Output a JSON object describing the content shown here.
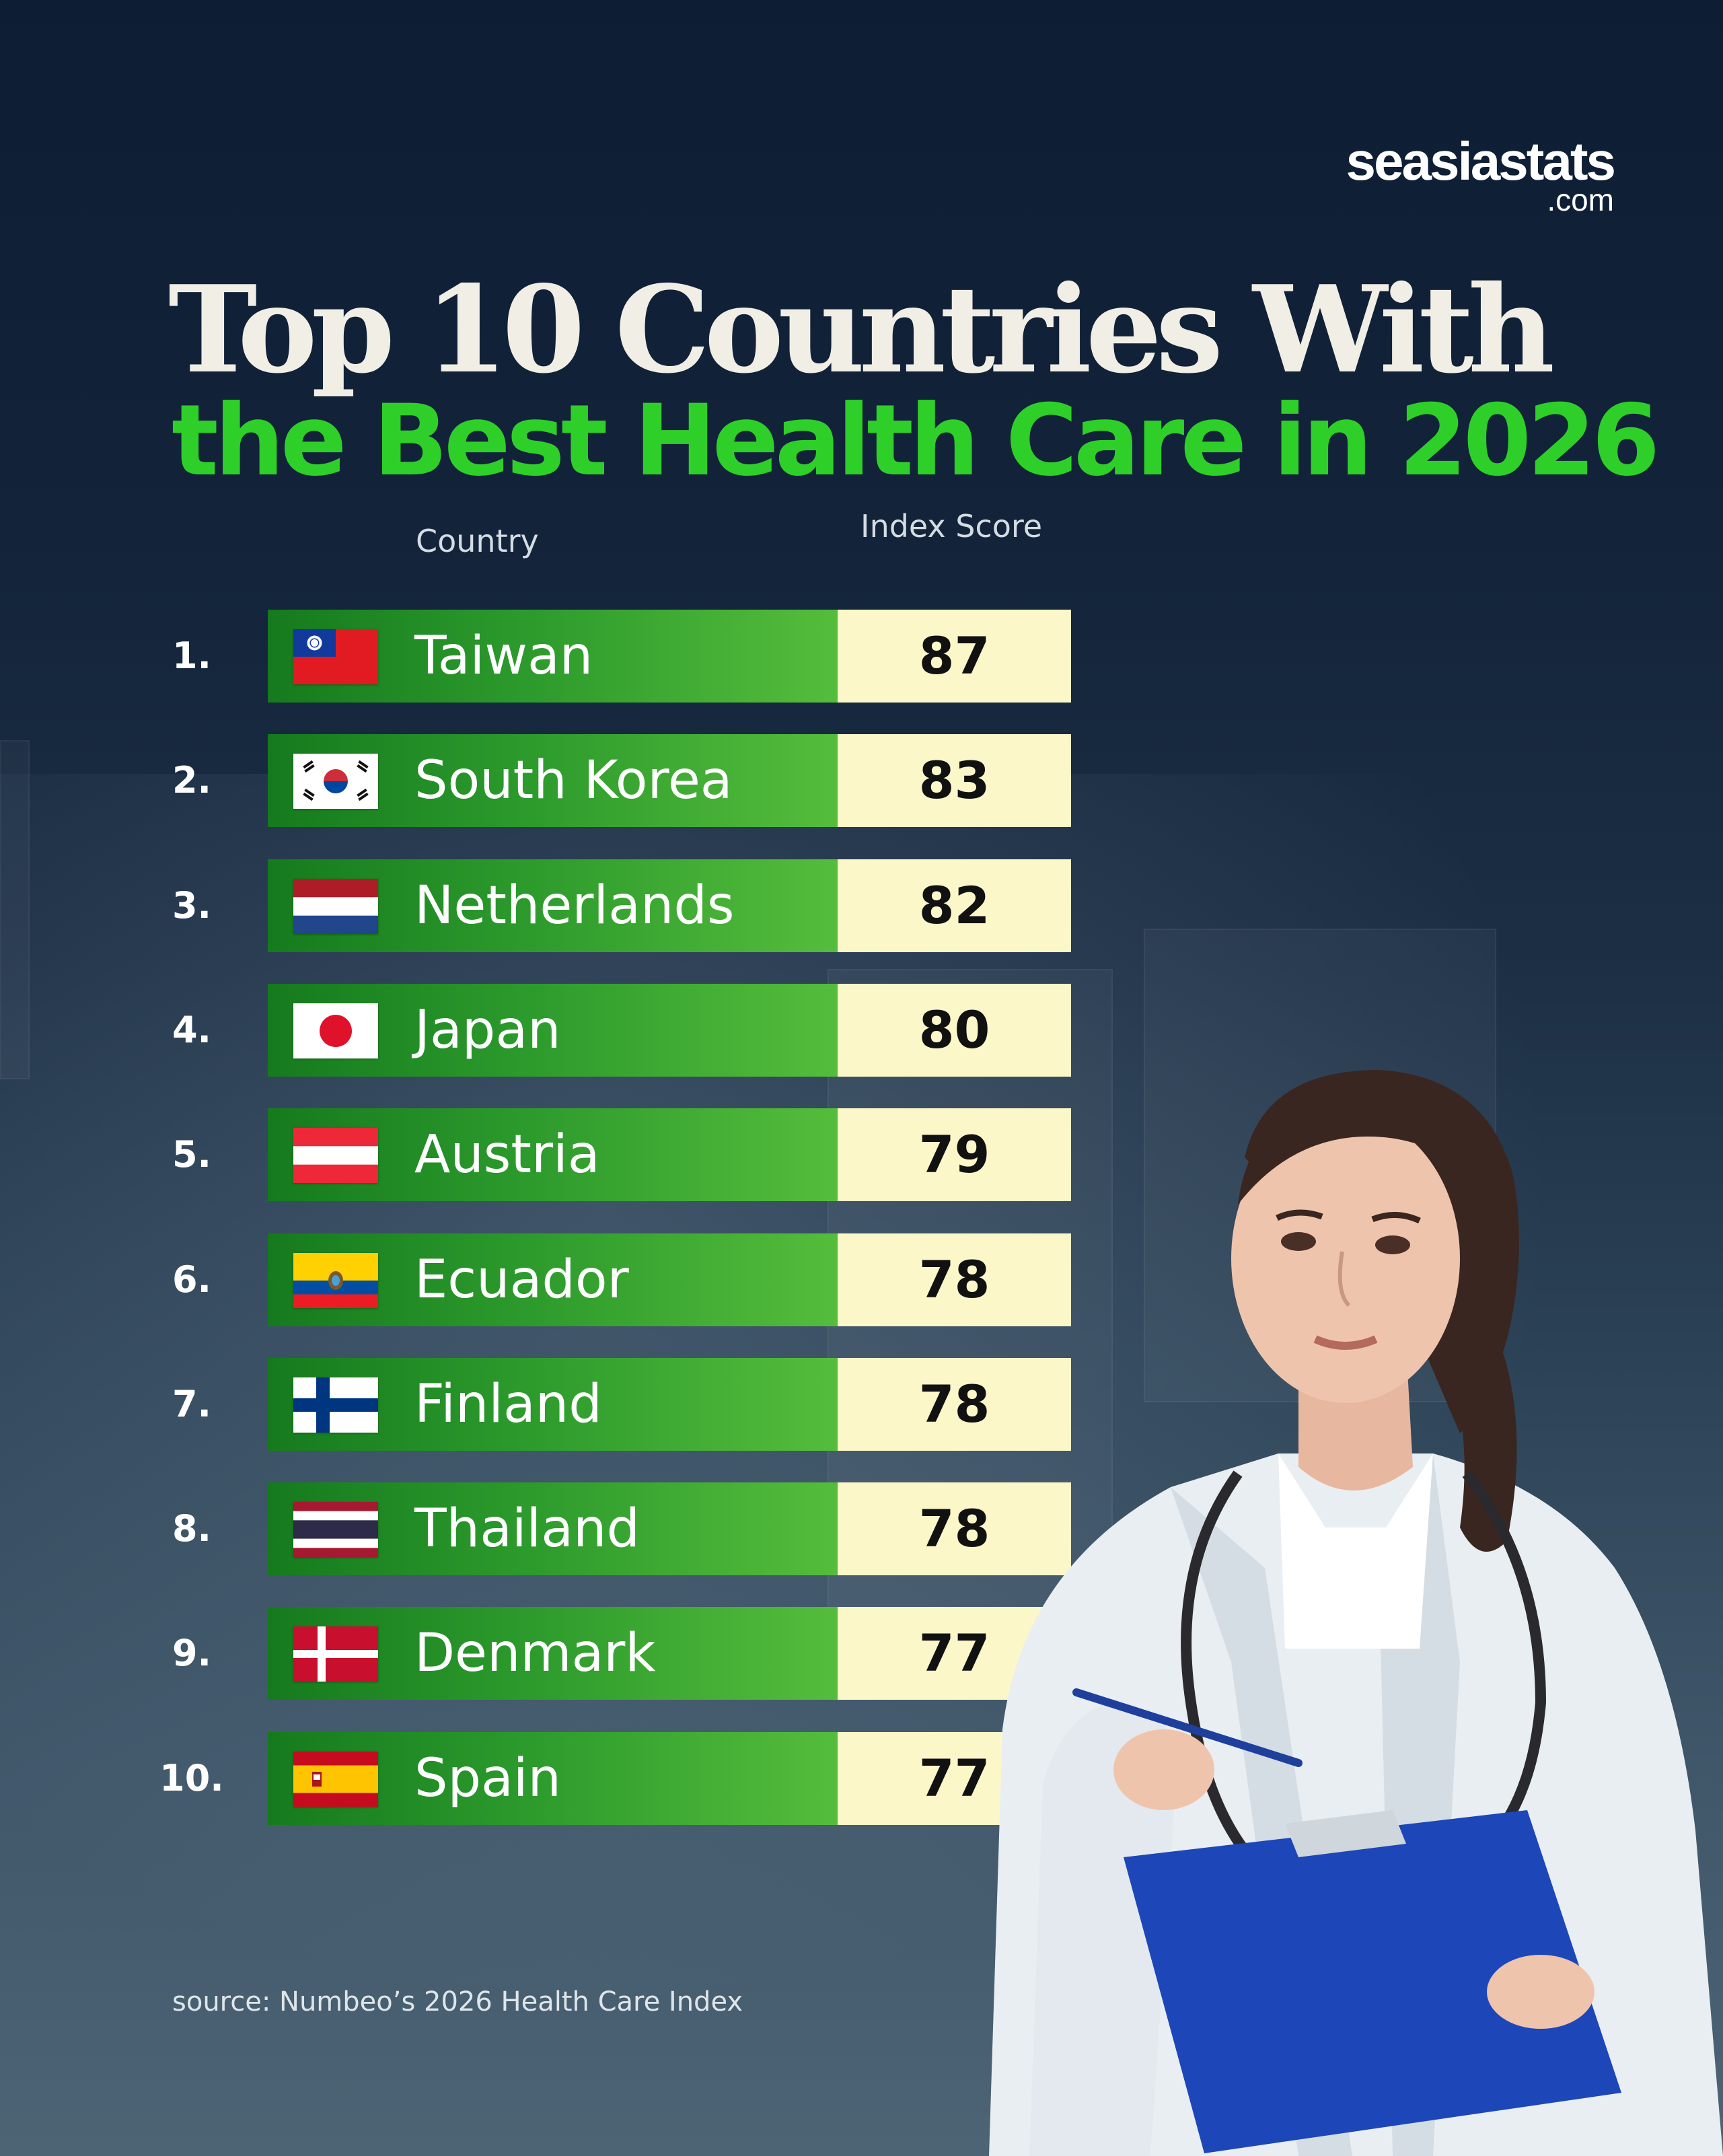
{
  "brand": {
    "name": "seasiastats",
    "suffix": ".com"
  },
  "title": {
    "line1": "Top 10 Countries With",
    "line2": "the Best Health Care in 2026"
  },
  "columns": {
    "country": "Country",
    "score": "Index Score"
  },
  "source": "source: Numbeo’s 2026 Health Care Index",
  "colors": {
    "title_green": "#2fcf2a",
    "bar_start": "#157a1d",
    "bar_end": "#55bd3c",
    "score_bg": "#fbf7c9",
    "background": "#13243a"
  },
  "chart_data": {
    "type": "table",
    "title": "Top 10 Countries With the Best Health Care in 2026",
    "columns": [
      "Country",
      "Index Score"
    ],
    "rows": [
      {
        "rank": "1.",
        "country": "Taiwan",
        "score": "87",
        "flag": "taiwan-flag-icon"
      },
      {
        "rank": "2.",
        "country": "South Korea",
        "score": "83",
        "flag": "south-korea-flag-icon"
      },
      {
        "rank": "3.",
        "country": "Netherlands",
        "score": "82",
        "flag": "netherlands-flag-icon"
      },
      {
        "rank": "4.",
        "country": "Japan",
        "score": "80",
        "flag": "japan-flag-icon"
      },
      {
        "rank": "5.",
        "country": "Austria",
        "score": "79",
        "flag": "austria-flag-icon"
      },
      {
        "rank": "6.",
        "country": "Ecuador",
        "score": "78",
        "flag": "ecuador-flag-icon"
      },
      {
        "rank": "7.",
        "country": "Finland",
        "score": "78",
        "flag": "finland-flag-icon"
      },
      {
        "rank": "8.",
        "country": "Thailand",
        "score": "78",
        "flag": "thailand-flag-icon"
      },
      {
        "rank": "9.",
        "country": "Denmark",
        "score": "77",
        "flag": "denmark-flag-icon"
      },
      {
        "rank": "10.",
        "country": "Spain",
        "score": "77",
        "flag": "spain-flag-icon"
      }
    ]
  }
}
